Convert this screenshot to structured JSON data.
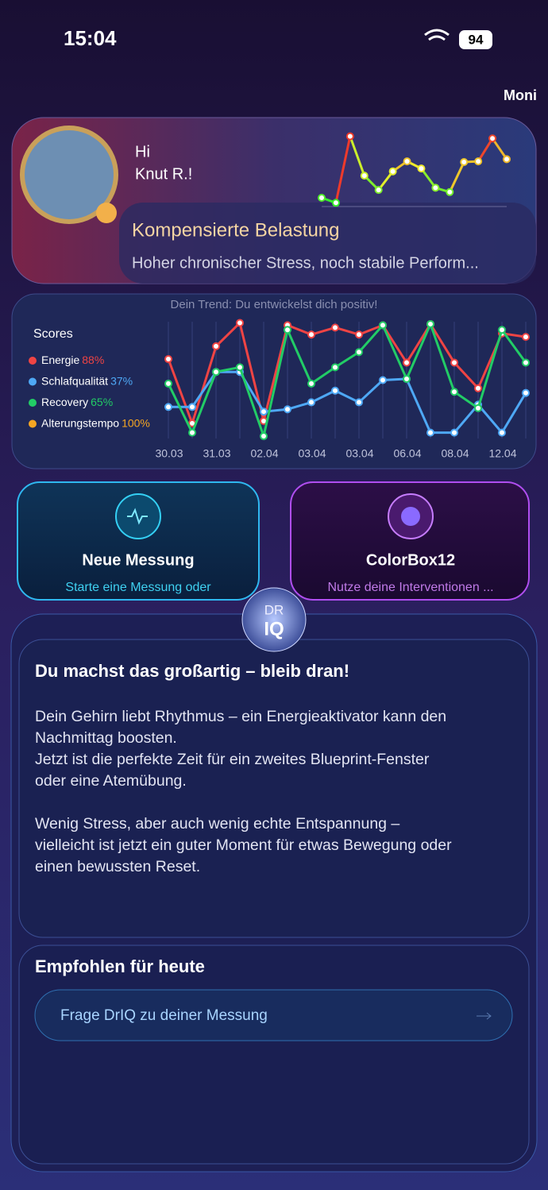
{
  "status_bar": {
    "time": "15:04",
    "battery": "94"
  },
  "logo": "Moni",
  "profile": {
    "greeting": "Hi",
    "name": "Knut R.!",
    "state": "Kompensierte Belastung",
    "description": "Hoher chronischer Stress, noch stabile Perform...",
    "sparkline": {
      "values": [
        10,
        3,
        96,
        41,
        21,
        47,
        61,
        51,
        24,
        18,
        60,
        61,
        93,
        64
      ],
      "ylim": [
        0,
        100
      ]
    }
  },
  "trend": {
    "title": "Dein Trend: Du entwickelst dich positiv!",
    "legend_title": "Scores",
    "ylim": [
      0,
      100
    ],
    "dates": [
      "30.03",
      "31.03",
      "02.04",
      "03.04",
      "03.04",
      "06.04",
      "08.04",
      "12.04"
    ],
    "series": [
      {
        "name": "Energie",
        "score": "88%",
        "color": "#ef4444",
        "values": [
          68,
          13,
          79,
          99,
          15,
          97,
          89,
          95,
          89,
          97,
          65,
          98,
          65,
          43,
          90,
          87
        ]
      },
      {
        "name": "Schlafqualität",
        "score": "37%",
        "color": "#4ea8f5",
        "values": [
          27,
          27,
          57,
          57,
          23,
          25,
          31,
          41,
          31,
          50,
          51,
          5,
          5,
          29,
          5,
          39
        ]
      },
      {
        "name": "Recovery",
        "score": "65%",
        "color": "#22cc66",
        "values": [
          47,
          5,
          57,
          61,
          2,
          93,
          47,
          61,
          74,
          97,
          51,
          98,
          40,
          26,
          93,
          65
        ]
      },
      {
        "name": "Alterungstempo",
        "score": "100%",
        "color": "#f5a623"
      }
    ]
  },
  "actions": [
    {
      "title": "Neue Messung",
      "subtitle": "Starte eine Messung oder"
    },
    {
      "title": "ColorBox12",
      "subtitle": "Nutze deine Interventionen ..."
    }
  ],
  "driq": {
    "badge_top": "DR",
    "badge_bottom": "IQ",
    "heading": "Du machst das großartig – bleib dran!",
    "lines": [
      "Dein Gehirn liebt Rhythmus – ein Energieaktivator kann den",
      "Nachmittag boosten.",
      "Jetzt ist die perfekte Zeit für ein zweites Blueprint-Fenster",
      "oder eine Atemübung.",
      "",
      "Wenig Stress, aber auch wenig echte Entspannung –",
      "vielleicht ist jetzt ein guter Moment für etwas Bewegung oder",
      "einen bewussten Reset."
    ]
  },
  "recommended": {
    "title": "Empfohlen für heute",
    "button": "Frage DrIQ zu deiner Messung"
  }
}
